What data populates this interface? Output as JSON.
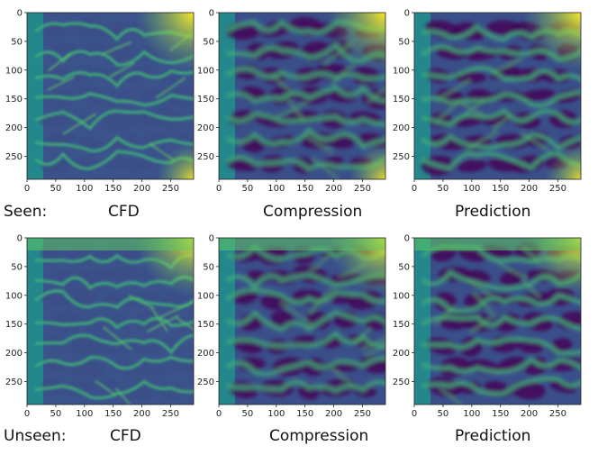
{
  "colormap": "viridis",
  "axis_ticks": {
    "x": [
      "0",
      "50",
      "100",
      "150",
      "200",
      "250"
    ],
    "y": [
      "0",
      "50",
      "100",
      "150",
      "200",
      "250"
    ]
  },
  "rows": [
    {
      "row_label": "Seen:",
      "panels": [
        {
          "caption": "CFD",
          "variant": "cfd"
        },
        {
          "caption": "Compression",
          "variant": "compressed"
        },
        {
          "caption": "Prediction",
          "variant": "predicted"
        }
      ]
    },
    {
      "row_label": "Unseen:",
      "panels": [
        {
          "caption": "CFD",
          "variant": "cfd"
        },
        {
          "caption": "Compression",
          "variant": "compressed"
        },
        {
          "caption": "Prediction",
          "variant": "predicted"
        }
      ]
    }
  ],
  "colors": {
    "viridis_dark": "#440154",
    "viridis_blue": "#3b528b",
    "viridis_teal": "#21918c",
    "viridis_green": "#5ec962",
    "viridis_yellow": "#fde725"
  }
}
